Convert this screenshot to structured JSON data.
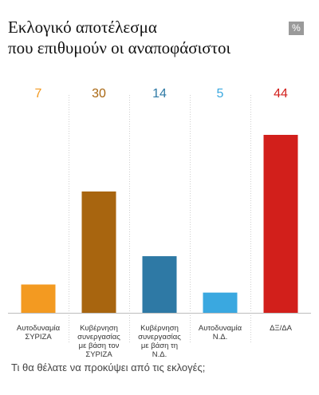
{
  "header": {
    "title_line1": "Εκλογικό αποτέλεσμα",
    "title_line2": "που επιθυμούν οι αναποφάσιστοι",
    "unit_badge": "%"
  },
  "caption": "Τι θα θέλατε να προκύψει από τις εκλογές;",
  "chart_data": {
    "type": "bar",
    "title": "Εκλογικό αποτέλεσμα που επιθυμούν οι αναποφάσιστοι",
    "unit": "%",
    "ylim": [
      0,
      50
    ],
    "grid": false,
    "categories": [
      [
        "Αυτοδυναμία",
        "ΣΥΡΙΖΑ"
      ],
      [
        "Κυβέρνηση",
        "συνεργασίας",
        "με βάση τον",
        "ΣΥΡΙΖΑ"
      ],
      [
        "Κυβέρνηση",
        "συνεργασίας",
        "με βάση τη",
        "Ν.Δ."
      ],
      [
        "Αυτοδυναμία",
        "Ν.Δ."
      ],
      [
        "ΔΞ/ΔΑ"
      ]
    ],
    "values": [
      7,
      30,
      14,
      5,
      44
    ],
    "colors": [
      "#f39a21",
      "#a8650f",
      "#2e79a5",
      "#3aa8e0",
      "#d21f1b"
    ]
  }
}
